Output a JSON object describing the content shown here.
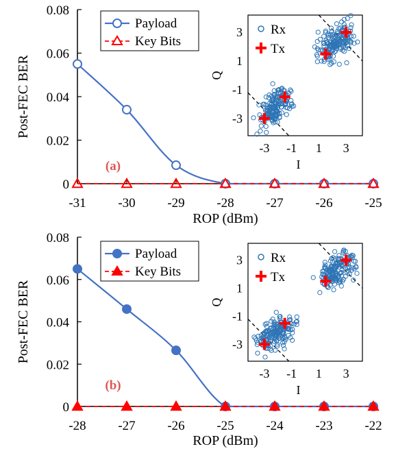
{
  "chart_data": [
    {
      "type": "line",
      "panel_label": "(a)",
      "xlabel": "ROP (dBm)",
      "ylabel": "Post-FEC BER",
      "x": [
        -31,
        -30,
        -29,
        -28,
        -27,
        -26,
        -25
      ],
      "xlim": [
        -31,
        -25
      ],
      "ylim": [
        0,
        0.08
      ],
      "xticks": [
        "-31",
        "-30",
        "-29",
        "-28",
        "-27",
        "-26",
        "-25"
      ],
      "yticks": [
        "0",
        "0.02",
        "0.04",
        "0.06",
        "0.08"
      ],
      "series": [
        {
          "name": "Payload",
          "marker": "open-circle",
          "color": "#4472c4",
          "values": [
            0.055,
            0.034,
            0.0085,
            0,
            0,
            0,
            0
          ]
        },
        {
          "name": "Key Bits",
          "marker": "open-triangle",
          "color": "#ff0000",
          "values": [
            0,
            0,
            0,
            0,
            0,
            0,
            0
          ]
        }
      ],
      "legend_position": "top-left",
      "inset": {
        "type": "scatter",
        "xlabel": "I",
        "ylabel": "Q",
        "xticks": [
          "-3",
          "-1",
          "1",
          "3"
        ],
        "yticks": [
          "3",
          "1",
          "-1",
          "-3"
        ],
        "series": [
          {
            "name": "Rx",
            "marker": "open-circle",
            "color": "#2e75b6"
          },
          {
            "name": "Tx",
            "marker": "plus",
            "color": "#ff0000",
            "points": [
              [
                -3,
                -3
              ],
              [
                -1.5,
                -1.5
              ],
              [
                1.5,
                1.5
              ],
              [
                3,
                3
              ]
            ]
          }
        ]
      }
    },
    {
      "type": "line",
      "panel_label": "(b)",
      "xlabel": "ROP (dBm)",
      "ylabel": "Post-FEC BER",
      "x": [
        -28,
        -27,
        -26,
        -25,
        -24,
        -23,
        -22
      ],
      "xlim": [
        -28,
        -22
      ],
      "ylim": [
        0,
        0.08
      ],
      "xticks": [
        "-28",
        "-27",
        "-26",
        "-25",
        "-24",
        "-23",
        "-22"
      ],
      "yticks": [
        "0",
        "0.02",
        "0.04",
        "0.06",
        "0.08"
      ],
      "series": [
        {
          "name": "Payload",
          "marker": "filled-circle",
          "color": "#4472c4",
          "values": [
            0.065,
            0.046,
            0.0265,
            0,
            0,
            0,
            0
          ]
        },
        {
          "name": "Key Bits",
          "marker": "filled-triangle",
          "color": "#ff0000",
          "values": [
            0,
            0,
            0,
            0,
            0,
            0,
            0
          ]
        }
      ],
      "legend_position": "top-left",
      "inset": {
        "type": "scatter",
        "xlabel": "I",
        "ylabel": "Q",
        "xticks": [
          "-3",
          "-1",
          "1",
          "3"
        ],
        "yticks": [
          "3",
          "1",
          "-1",
          "-3"
        ],
        "series": [
          {
            "name": "Rx",
            "marker": "open-circle",
            "color": "#2e75b6"
          },
          {
            "name": "Tx",
            "marker": "plus",
            "color": "#ff0000",
            "points": [
              [
                -3,
                -3
              ],
              [
                -1.5,
                -1.5
              ],
              [
                1.5,
                1.5
              ],
              [
                3,
                3
              ]
            ]
          }
        ]
      }
    }
  ]
}
